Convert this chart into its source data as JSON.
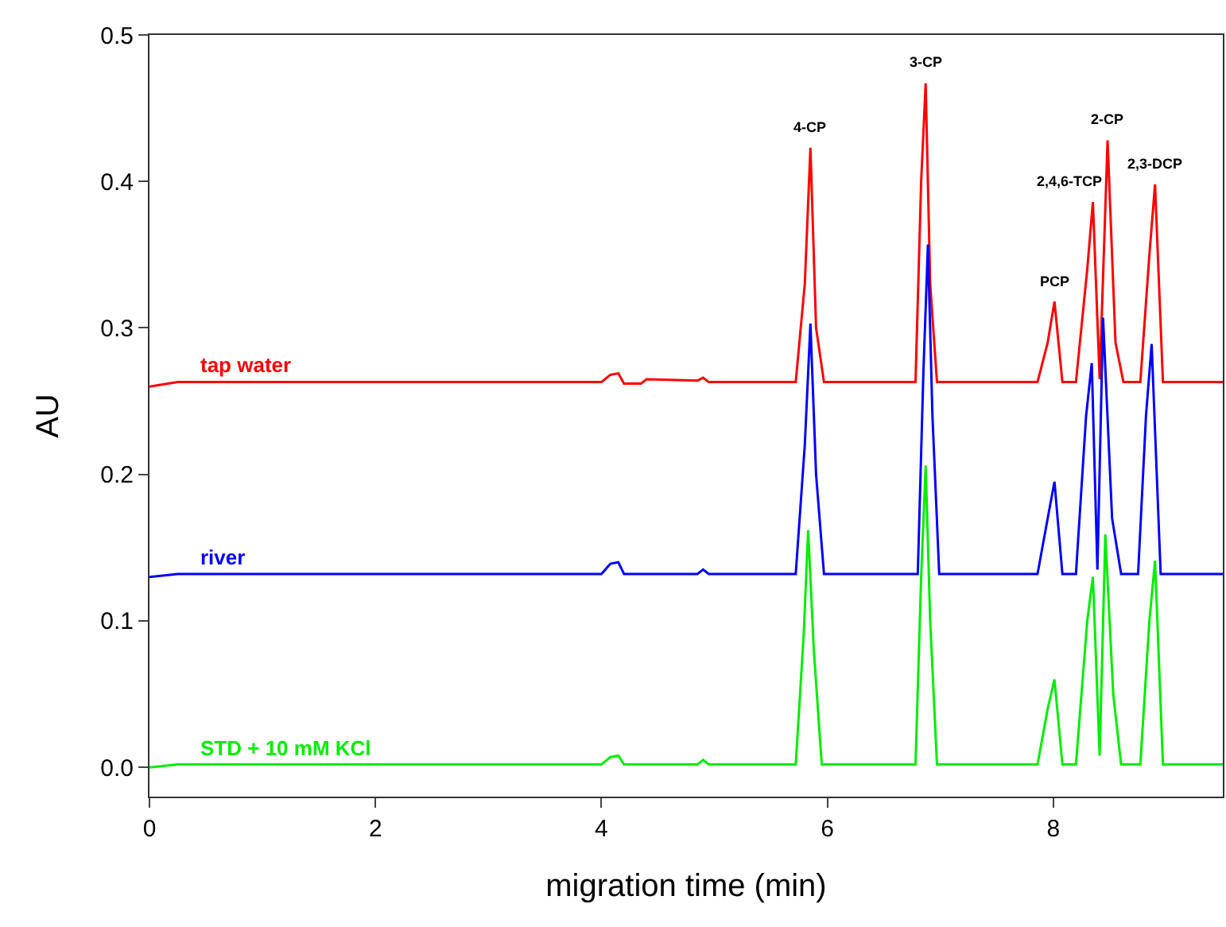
{
  "chart_data": {
    "type": "line",
    "xlabel": "migration time (min)",
    "ylabel": "AU",
    "xlim": [
      0,
      9.5
    ],
    "xticks": [
      0,
      2,
      4,
      6,
      8
    ],
    "ylim": [
      -0.02,
      0.5
    ],
    "yticks": [
      {
        "value": 0,
        "label": "0.0"
      },
      0.1,
      0.2,
      0.3,
      0.4,
      0.5
    ],
    "legend": false,
    "marker": "none",
    "line_style": "solid",
    "series": [
      {
        "name": "tap water",
        "color": "#ff0000",
        "x": [
          0,
          0.25,
          4.0,
          4.08,
          4.15,
          4.2,
          4.35,
          4.4,
          4.85,
          4.9,
          4.95,
          5.72,
          5.8,
          5.85,
          5.9,
          5.97,
          6.78,
          6.83,
          6.87,
          6.91,
          6.97,
          7.86,
          7.95,
          8.01,
          8.08,
          8.2,
          8.3,
          8.35,
          8.41,
          8.48,
          8.55,
          8.62,
          8.77,
          8.85,
          8.9,
          8.97,
          9.5
        ],
        "values": [
          0.26,
          0.263,
          0.263,
          0.268,
          0.269,
          0.262,
          0.262,
          0.265,
          0.264,
          0.266,
          0.263,
          0.263,
          0.33,
          0.423,
          0.3,
          0.263,
          0.263,
          0.4,
          0.467,
          0.33,
          0.263,
          0.263,
          0.29,
          0.318,
          0.263,
          0.263,
          0.34,
          0.386,
          0.265,
          0.428,
          0.29,
          0.263,
          0.263,
          0.35,
          0.398,
          0.263,
          0.263
        ]
      },
      {
        "name": "river",
        "color": "#0000ff",
        "x": [
          0,
          0.25,
          4.0,
          4.08,
          4.15,
          4.2,
          4.85,
          4.9,
          4.95,
          5.72,
          5.8,
          5.85,
          5.9,
          5.97,
          6.8,
          6.85,
          6.89,
          6.93,
          6.99,
          7.86,
          7.95,
          8.01,
          8.08,
          8.2,
          8.29,
          8.34,
          8.39,
          8.44,
          8.52,
          8.6,
          8.75,
          8.82,
          8.87,
          8.95,
          9.5
        ],
        "values": [
          0.13,
          0.132,
          0.132,
          0.139,
          0.14,
          0.132,
          0.132,
          0.135,
          0.132,
          0.132,
          0.22,
          0.303,
          0.2,
          0.132,
          0.132,
          0.27,
          0.357,
          0.24,
          0.132,
          0.132,
          0.17,
          0.195,
          0.132,
          0.132,
          0.24,
          0.276,
          0.135,
          0.307,
          0.17,
          0.132,
          0.132,
          0.24,
          0.289,
          0.132,
          0.132
        ]
      },
      {
        "name": "STD + 10 mM KCl",
        "color": "#00ee00",
        "x": [
          0,
          0.25,
          4.0,
          4.08,
          4.15,
          4.2,
          4.85,
          4.9,
          4.95,
          5.72,
          5.79,
          5.83,
          5.88,
          5.95,
          6.78,
          6.83,
          6.87,
          6.91,
          6.97,
          7.86,
          7.95,
          8.01,
          8.08,
          8.2,
          8.3,
          8.35,
          8.41,
          8.46,
          8.53,
          8.6,
          8.77,
          8.85,
          8.9,
          8.97,
          9.5
        ],
        "values": [
          0.0,
          0.002,
          0.002,
          0.007,
          0.008,
          0.002,
          0.002,
          0.005,
          0.002,
          0.002,
          0.09,
          0.162,
          0.08,
          0.002,
          0.002,
          0.13,
          0.206,
          0.1,
          0.002,
          0.002,
          0.04,
          0.06,
          0.002,
          0.002,
          0.1,
          0.13,
          0.008,
          0.159,
          0.05,
          0.002,
          0.002,
          0.1,
          0.141,
          0.002,
          0.002
        ]
      }
    ],
    "annotations": [
      {
        "text": "4-CP",
        "x": 5.85,
        "y": 0.423
      },
      {
        "text": "3-CP",
        "x": 6.87,
        "y": 0.467
      },
      {
        "text": "PCP",
        "x": 8.01,
        "y": 0.318
      },
      {
        "text": "2,4,6-TCP",
        "x": 8.35,
        "y": 0.386
      },
      {
        "text": "2-CP",
        "x": 8.48,
        "y": 0.428
      },
      {
        "text": "2,3-DCP",
        "x": 8.9,
        "y": 0.398
      }
    ]
  }
}
